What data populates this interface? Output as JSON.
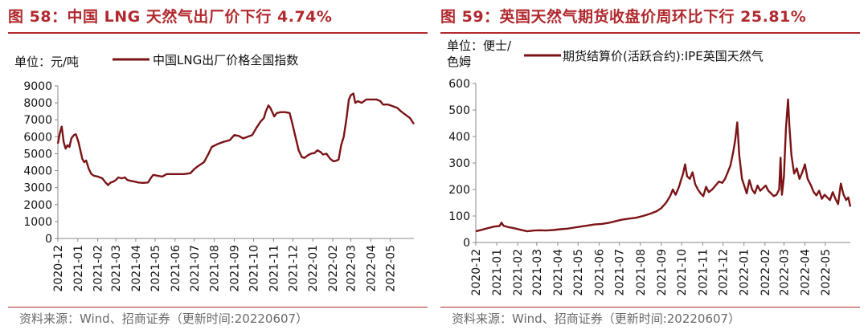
{
  "panels": [
    {
      "title": "图 58：中国 LNG 天然气出厂价下行 4.74%",
      "source": "资料来源：Wind、招商证券（更新时间:20220607）",
      "chart_data": {
        "type": "line",
        "unit_label": "单位：元/吨",
        "xlabel": "",
        "ylabel": "",
        "ylim": [
          0,
          9000
        ],
        "yticks": [
          0,
          1000,
          2000,
          3000,
          4000,
          5000,
          6000,
          7000,
          8000,
          9000
        ],
        "xlim": [
          "2020-12-01",
          "2022-06-07"
        ],
        "xticks": [
          "2020-12",
          "2021-01",
          "2021-02",
          "2021-03",
          "2021-04",
          "2021-05",
          "2021-06",
          "2021-07",
          "2021-08",
          "2021-09",
          "2021-10",
          "2021-11",
          "2021-12",
          "2022-01",
          "2022-02",
          "2022-03",
          "2022-04",
          "2022-05"
        ],
        "grid": false,
        "legend_position": "top",
        "series": [
          {
            "name": "中国LNG出厂价格全国指数",
            "color": "#7b1315",
            "points": [
              [
                "2020-12-01",
                5600
              ],
              [
                "2020-12-04",
                6200
              ],
              [
                "2020-12-07",
                6600
              ],
              [
                "2020-12-10",
                5700
              ],
              [
                "2020-12-13",
                5300
              ],
              [
                "2020-12-16",
                5500
              ],
              [
                "2020-12-19",
                5400
              ],
              [
                "2020-12-22",
                5900
              ],
              [
                "2020-12-26",
                6100
              ],
              [
                "2020-12-29",
                6150
              ],
              [
                "2021-01-02",
                5700
              ],
              [
                "2021-01-05",
                5200
              ],
              [
                "2021-01-08",
                4700
              ],
              [
                "2021-01-11",
                4500
              ],
              [
                "2021-01-14",
                4600
              ],
              [
                "2021-01-18",
                4100
              ],
              [
                "2021-01-22",
                3800
              ],
              [
                "2021-01-26",
                3700
              ],
              [
                "2021-02-01",
                3650
              ],
              [
                "2021-02-08",
                3550
              ],
              [
                "2021-02-13",
                3300
              ],
              [
                "2021-02-17",
                3150
              ],
              [
                "2021-02-21",
                3300
              ],
              [
                "2021-02-25",
                3350
              ],
              [
                "2021-03-01",
                3450
              ],
              [
                "2021-03-05",
                3600
              ],
              [
                "2021-03-10",
                3550
              ],
              [
                "2021-03-15",
                3600
              ],
              [
                "2021-03-19",
                3450
              ],
              [
                "2021-03-24",
                3400
              ],
              [
                "2021-03-31",
                3350
              ],
              [
                "2021-04-05",
                3300
              ],
              [
                "2021-04-12",
                3280
              ],
              [
                "2021-04-20",
                3300
              ],
              [
                "2021-04-24",
                3550
              ],
              [
                "2021-04-28",
                3750
              ],
              [
                "2021-05-05",
                3700
              ],
              [
                "2021-05-12",
                3650
              ],
              [
                "2021-05-19",
                3800
              ],
              [
                "2021-05-31",
                3800
              ],
              [
                "2021-06-15",
                3800
              ],
              [
                "2021-06-25",
                3850
              ],
              [
                "2021-07-01",
                4100
              ],
              [
                "2021-07-08",
                4300
              ],
              [
                "2021-07-16",
                4500
              ],
              [
                "2021-07-23",
                5000
              ],
              [
                "2021-07-28",
                5400
              ],
              [
                "2021-08-05",
                5550
              ],
              [
                "2021-08-15",
                5700
              ],
              [
                "2021-08-25",
                5800
              ],
              [
                "2021-09-01",
                6100
              ],
              [
                "2021-09-08",
                6050
              ],
              [
                "2021-09-15",
                5900
              ],
              [
                "2021-09-22",
                6000
              ],
              [
                "2021-09-29",
                6100
              ],
              [
                "2021-10-05",
                6500
              ],
              [
                "2021-10-12",
                6900
              ],
              [
                "2021-10-17",
                7100
              ],
              [
                "2021-10-20",
                7500
              ],
              [
                "2021-10-24",
                7850
              ],
              [
                "2021-10-27",
                7700
              ],
              [
                "2021-11-02",
                7200
              ],
              [
                "2021-11-06",
                7400
              ],
              [
                "2021-11-12",
                7450
              ],
              [
                "2021-11-19",
                7450
              ],
              [
                "2021-11-26",
                7400
              ],
              [
                "2021-11-30",
                6800
              ],
              [
                "2021-12-05",
                6000
              ],
              [
                "2021-12-10",
                5200
              ],
              [
                "2021-12-15",
                4800
              ],
              [
                "2021-12-19",
                4750
              ],
              [
                "2021-12-24",
                4900
              ],
              [
                "2021-12-29",
                5000
              ],
              [
                "2022-01-04",
                5050
              ],
              [
                "2022-01-08",
                5200
              ],
              [
                "2022-01-13",
                5100
              ],
              [
                "2022-01-17",
                4950
              ],
              [
                "2022-01-22",
                5000
              ],
              [
                "2022-01-28",
                4700
              ],
              [
                "2022-02-02",
                4550
              ],
              [
                "2022-02-07",
                4600
              ],
              [
                "2022-02-10",
                4650
              ],
              [
                "2022-02-14",
                5500
              ],
              [
                "2022-02-18",
                6000
              ],
              [
                "2022-02-22",
                7000
              ],
              [
                "2022-02-26",
                8200
              ],
              [
                "2022-03-01",
                8450
              ],
              [
                "2022-03-05",
                8550
              ],
              [
                "2022-03-08",
                8000
              ],
              [
                "2022-03-12",
                8100
              ],
              [
                "2022-03-18",
                8000
              ],
              [
                "2022-03-25",
                8200
              ],
              [
                "2022-04-01",
                8200
              ],
              [
                "2022-04-10",
                8200
              ],
              [
                "2022-04-16",
                8100
              ],
              [
                "2022-04-20",
                7900
              ],
              [
                "2022-04-28",
                7900
              ],
              [
                "2022-05-05",
                7800
              ],
              [
                "2022-05-12",
                7700
              ],
              [
                "2022-05-18",
                7500
              ],
              [
                "2022-05-25",
                7300
              ],
              [
                "2022-06-01",
                7100
              ],
              [
                "2022-06-07",
                6750
              ]
            ]
          }
        ]
      }
    },
    {
      "title": "图 59：英国天然气期货收盘价周环比下行 25.81%",
      "source": "资料来源：Wind、招商证券（更新时间:20220607）",
      "chart_data": {
        "type": "line",
        "unit_label": "单位：便士/色姆",
        "xlabel": "",
        "ylabel": "",
        "ylim": [
          0,
          600
        ],
        "yticks": [
          0,
          100,
          200,
          300,
          400,
          500,
          600
        ],
        "xlim": [
          "2020-12-01",
          "2022-06-07"
        ],
        "xticks": [
          "2020-12",
          "2021-01",
          "2021-02",
          "2021-03",
          "2021-04",
          "2021-05",
          "2021-06",
          "2021-07",
          "2021-08",
          "2021-09",
          "2021-10",
          "2021-11",
          "2021-12",
          "2022-01",
          "2022-02",
          "2022-03",
          "2022-04",
          "2022-05"
        ],
        "grid": false,
        "legend_position": "top",
        "series": [
          {
            "name": "期货结算价(活跃合约):IPE英国天然气",
            "color": "#7b1315",
            "points": [
              [
                "2020-12-01",
                42
              ],
              [
                "2020-12-10",
                48
              ],
              [
                "2020-12-20",
                55
              ],
              [
                "2020-12-28",
                60
              ],
              [
                "2021-01-05",
                62
              ],
              [
                "2021-01-08",
                75
              ],
              [
                "2021-01-11",
                63
              ],
              [
                "2021-01-18",
                58
              ],
              [
                "2021-01-25",
                55
              ],
              [
                "2021-02-05",
                48
              ],
              [
                "2021-02-15",
                42
              ],
              [
                "2021-02-25",
                45
              ],
              [
                "2021-03-05",
                46
              ],
              [
                "2021-03-15",
                45
              ],
              [
                "2021-03-25",
                47
              ],
              [
                "2021-04-05",
                50
              ],
              [
                "2021-04-15",
                52
              ],
              [
                "2021-04-25",
                56
              ],
              [
                "2021-05-05",
                60
              ],
              [
                "2021-05-15",
                64
              ],
              [
                "2021-05-25",
                68
              ],
              [
                "2021-06-05",
                70
              ],
              [
                "2021-06-15",
                74
              ],
              [
                "2021-06-25",
                80
              ],
              [
                "2021-07-05",
                86
              ],
              [
                "2021-07-15",
                90
              ],
              [
                "2021-07-25",
                93
              ],
              [
                "2021-08-05",
                100
              ],
              [
                "2021-08-15",
                108
              ],
              [
                "2021-08-25",
                118
              ],
              [
                "2021-09-01",
                130
              ],
              [
                "2021-09-08",
                150
              ],
              [
                "2021-09-14",
                175
              ],
              [
                "2021-09-18",
                200
              ],
              [
                "2021-09-22",
                180
              ],
              [
                "2021-09-27",
                210
              ],
              [
                "2021-09-30",
                235
              ],
              [
                "2021-10-03",
                260
              ],
              [
                "2021-10-06",
                295
              ],
              [
                "2021-10-09",
                250
              ],
              [
                "2021-10-13",
                240
              ],
              [
                "2021-10-17",
                265
              ],
              [
                "2021-10-21",
                220
              ],
              [
                "2021-10-25",
                200
              ],
              [
                "2021-10-29",
                185
              ],
              [
                "2021-11-02",
                175
              ],
              [
                "2021-11-06",
                210
              ],
              [
                "2021-11-10",
                190
              ],
              [
                "2021-11-15",
                200
              ],
              [
                "2021-11-20",
                215
              ],
              [
                "2021-11-25",
                230
              ],
              [
                "2021-11-30",
                225
              ],
              [
                "2021-12-04",
                240
              ],
              [
                "2021-12-08",
                265
              ],
              [
                "2021-12-12",
                290
              ],
              [
                "2021-12-16",
                340
              ],
              [
                "2021-12-19",
                385
              ],
              [
                "2021-12-22",
                453
              ],
              [
                "2021-12-25",
                330
              ],
              [
                "2021-12-29",
                240
              ],
              [
                "2022-01-02",
                210
              ],
              [
                "2022-01-05",
                185
              ],
              [
                "2022-01-09",
                235
              ],
              [
                "2022-01-13",
                200
              ],
              [
                "2022-01-17",
                185
              ],
              [
                "2022-01-21",
                215
              ],
              [
                "2022-01-25",
                195
              ],
              [
                "2022-01-29",
                205
              ],
              [
                "2022-02-02",
                215
              ],
              [
                "2022-02-06",
                195
              ],
              [
                "2022-02-10",
                185
              ],
              [
                "2022-02-14",
                175
              ],
              [
                "2022-02-18",
                180
              ],
              [
                "2022-02-22",
                200
              ],
              [
                "2022-02-24",
                320
              ],
              [
                "2022-02-26",
                180
              ],
              [
                "2022-03-01",
                250
              ],
              [
                "2022-03-04",
                430
              ],
              [
                "2022-03-07",
                540
              ],
              [
                "2022-03-09",
                440
              ],
              [
                "2022-03-12",
                330
              ],
              [
                "2022-03-16",
                260
              ],
              [
                "2022-03-20",
                280
              ],
              [
                "2022-03-24",
                240
              ],
              [
                "2022-03-28",
                265
              ],
              [
                "2022-04-01",
                295
              ],
              [
                "2022-04-05",
                240
              ],
              [
                "2022-04-10",
                215
              ],
              [
                "2022-04-14",
                190
              ],
              [
                "2022-04-18",
                178
              ],
              [
                "2022-04-22",
                195
              ],
              [
                "2022-04-26",
                165
              ],
              [
                "2022-04-30",
                180
              ],
              [
                "2022-05-04",
                170
              ],
              [
                "2022-05-08",
                160
              ],
              [
                "2022-05-12",
                190
              ],
              [
                "2022-05-16",
                165
              ],
              [
                "2022-05-20",
                145
              ],
              [
                "2022-05-24",
                222
              ],
              [
                "2022-05-28",
                180
              ],
              [
                "2022-06-01",
                160
              ],
              [
                "2022-06-04",
                170
              ],
              [
                "2022-06-07",
                135
              ]
            ]
          }
        ]
      }
    }
  ]
}
